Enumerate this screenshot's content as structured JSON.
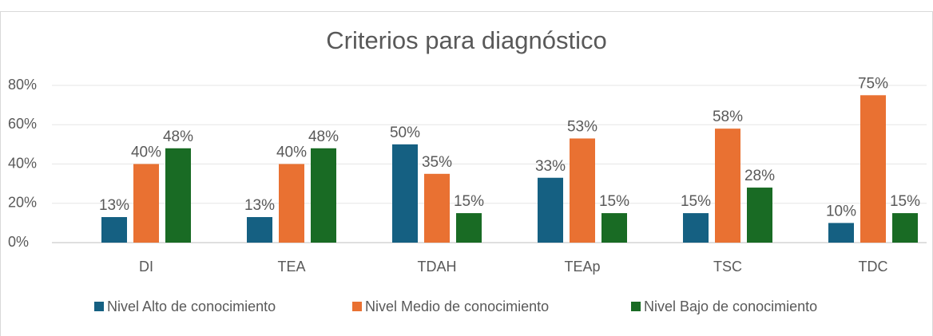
{
  "chart_data": {
    "type": "bar",
    "title": "Criterios para diagnóstico",
    "categories": [
      "DI",
      "TEA",
      "TDAH",
      "TEAp",
      "TSC",
      "TDC"
    ],
    "series": [
      {
        "name": "Nivel Alto de conocimiento",
        "color": "#156082",
        "values": [
          13,
          13,
          50,
          33,
          15,
          10
        ],
        "value_labels": [
          "13%",
          "13%",
          "50%",
          "33%",
          "15%",
          "10%"
        ]
      },
      {
        "name": "Nivel Medio de conocimiento",
        "color": "#E97132",
        "values": [
          40,
          40,
          35,
          53,
          58,
          75
        ],
        "value_labels": [
          "40%",
          "40%",
          "35%",
          "53%",
          "58%",
          "75%"
        ]
      },
      {
        "name": "Nivel Bajo de conocimiento",
        "color": "#196B24",
        "values": [
          48,
          48,
          15,
          15,
          28,
          15
        ],
        "value_labels": [
          "48%",
          "48%",
          "15%",
          "15%",
          "28%",
          "15%"
        ]
      }
    ],
    "ylim": [
      0,
      80
    ],
    "yticks": [
      {
        "value": 0,
        "label": "0%"
      },
      {
        "value": 20,
        "label": "20%"
      },
      {
        "value": 40,
        "label": "40%"
      },
      {
        "value": 60,
        "label": "60%"
      },
      {
        "value": 80,
        "label": "80%"
      }
    ],
    "grid": true,
    "legend": "bottom"
  }
}
